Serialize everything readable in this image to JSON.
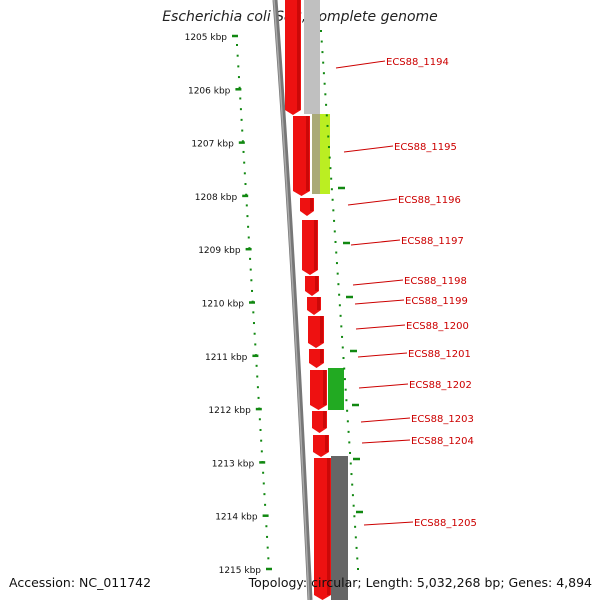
{
  "title": "Escherichia coli S88, complete genome",
  "accession": "Accession: NC_011742",
  "summary": "Topology: circular; Length: 5,032,268 bp; Genes: 4,894",
  "colors": {
    "forward_gene": "#ee1111",
    "reverse_gene": "#999999",
    "ticks": "#118811",
    "label": "#cc0000",
    "highlight_yellow": "#bbee22",
    "highlight_green": "#22aa22"
  },
  "axis": {
    "unit": "kbp",
    "ticks": [
      {
        "value": 1205,
        "label": "1205 kbp"
      },
      {
        "value": 1206,
        "label": "1206 kbp"
      },
      {
        "value": 1207,
        "label": "1207 kbp"
      },
      {
        "value": 1208,
        "label": "1208 kbp"
      },
      {
        "value": 1209,
        "label": "1209 kbp"
      },
      {
        "value": 1210,
        "label": "1210 kbp"
      },
      {
        "value": 1211,
        "label": "1211 kbp"
      },
      {
        "value": 1212,
        "label": "1212 kbp"
      },
      {
        "value": 1213,
        "label": "1213 kbp"
      },
      {
        "value": 1214,
        "label": "1214 kbp"
      },
      {
        "value": 1215,
        "label": "1215 kbp"
      }
    ]
  },
  "genes": [
    {
      "label": "ECS88_1194"
    },
    {
      "label": "ECS88_1195"
    },
    {
      "label": "ECS88_1196"
    },
    {
      "label": "ECS88_1197"
    },
    {
      "label": "ECS88_1198"
    },
    {
      "label": "ECS88_1199"
    },
    {
      "label": "ECS88_1200"
    },
    {
      "label": "ECS88_1201"
    },
    {
      "label": "ECS88_1202"
    },
    {
      "label": "ECS88_1203"
    },
    {
      "label": "ECS88_1204"
    },
    {
      "label": "ECS88_1205"
    }
  ]
}
